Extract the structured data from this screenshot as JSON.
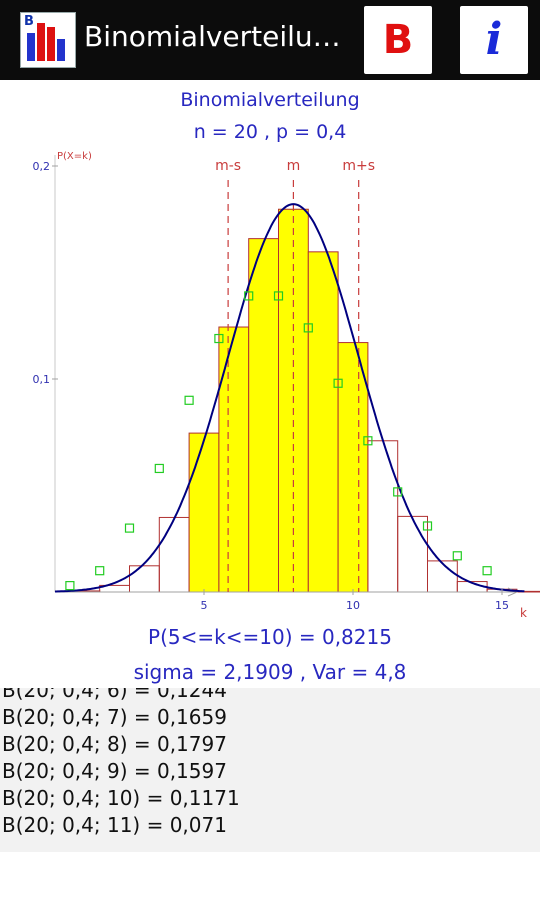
{
  "appbar": {
    "title": "Binomialverteilu…",
    "icon_letter": "B",
    "b_button_label": "B",
    "info_button_label": "i",
    "colors": {
      "bar": "#0c0c0c",
      "b_red": "#e01010",
      "i_blue": "#1a2ad8"
    }
  },
  "chart": {
    "title": "Binomialverteilung",
    "params": "n = 20 , p = 0,4",
    "prob_text": "P(5<=k<=10) = 0,8215",
    "stats_text": "sigma = 2,1909 , Var = 4,8",
    "y_axis_label": "P(X=k)",
    "x_axis_label": "k",
    "marker_labels": [
      "m-s",
      "m",
      "m+s"
    ],
    "y_ticks": [
      {
        "value": 0.1,
        "label": "0,1"
      },
      {
        "value": 0.2,
        "label": "0,2"
      }
    ],
    "x_ticks": [
      {
        "value": 5,
        "label": "5"
      },
      {
        "value": 10,
        "label": "10"
      },
      {
        "value": 15,
        "label": "15"
      }
    ],
    "colors": {
      "text": "#2828c0",
      "fill": "#ffff00",
      "outline": "#b03030",
      "curve": "#000080",
      "marker": "#c83c3c",
      "square": "#22cc22"
    }
  },
  "chart_data": {
    "type": "bar",
    "n": 20,
    "p": 0.4,
    "mean": 8,
    "sigma": 2.1909,
    "highlight_range": [
      5,
      10
    ],
    "xlim": [
      0,
      15.8
    ],
    "ylim": [
      0,
      0.2
    ],
    "k": [
      0,
      1,
      2,
      3,
      4,
      5,
      6,
      7,
      8,
      9,
      10,
      11,
      12,
      13,
      14,
      15,
      16
    ],
    "values": [
      0.0,
      0.0005,
      0.0031,
      0.0123,
      0.035,
      0.0746,
      0.1244,
      0.1659,
      0.1797,
      0.1597,
      0.1171,
      0.071,
      0.0355,
      0.0146,
      0.0049,
      0.0013,
      0.0003
    ],
    "squares": [
      {
        "x": 0.5,
        "y": 0.003
      },
      {
        "x": 1.5,
        "y": 0.01
      },
      {
        "x": 2.5,
        "y": 0.03
      },
      {
        "x": 3.5,
        "y": 0.058
      },
      {
        "x": 4.5,
        "y": 0.09
      },
      {
        "x": 5.5,
        "y": 0.119
      },
      {
        "x": 6.5,
        "y": 0.139
      },
      {
        "x": 7.5,
        "y": 0.139
      },
      {
        "x": 8.5,
        "y": 0.124
      },
      {
        "x": 9.5,
        "y": 0.098
      },
      {
        "x": 10.5,
        "y": 0.071
      },
      {
        "x": 11.5,
        "y": 0.047
      },
      {
        "x": 12.5,
        "y": 0.031
      },
      {
        "x": 13.5,
        "y": 0.017
      },
      {
        "x": 14.5,
        "y": 0.01
      }
    ]
  },
  "results": {
    "rows": [
      "B(20; 0,4; 6) = 0,1244",
      "B(20; 0,4; 7) = 0,1659",
      "B(20; 0,4; 8) = 0,1797",
      "B(20; 0,4; 9) = 0,1597",
      "B(20; 0,4; 10) = 0,1171",
      "B(20; 0,4; 11) = 0,071"
    ]
  }
}
